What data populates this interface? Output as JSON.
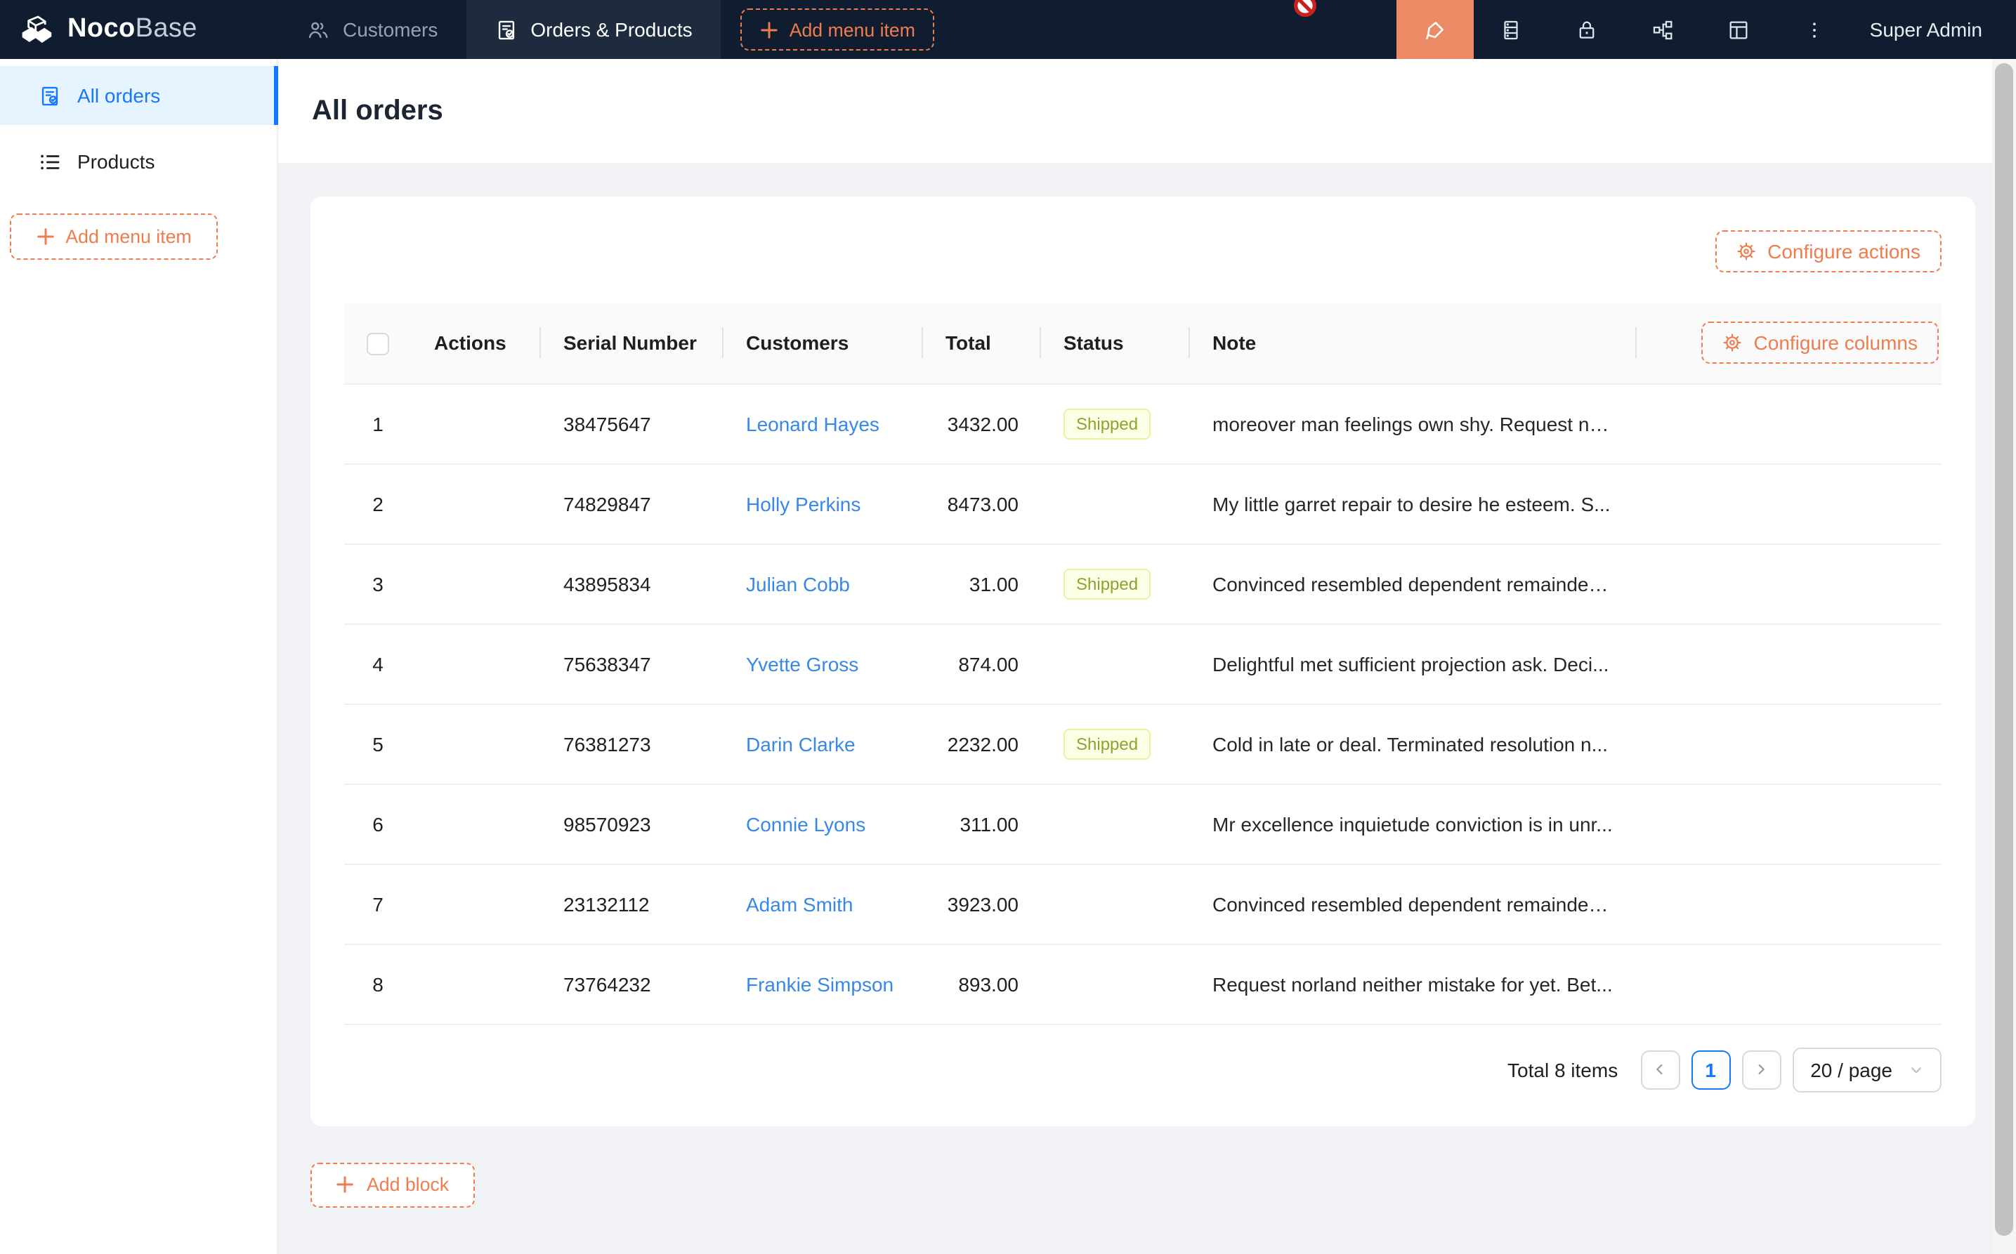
{
  "colors": {
    "nav_bg": "#101d31",
    "nav_active_bg": "#1e2b3f",
    "accent_orange": "#ed7d4f",
    "accent_orange_bg": "#eb8a64",
    "side_active_bg": "#e6f4ff",
    "active_blue": "#1677ff",
    "link_blue": "#3788e8",
    "content_bg": "#f0f2f5",
    "tag_bg": "#fcffe6",
    "tag_border": "#e8f39b",
    "tag_text": "#8ca32f",
    "cursor_red": "#c9211c"
  },
  "nav": {
    "logo_bold": "Noco",
    "logo_light": "Base",
    "tabs": [
      {
        "label": "Customers",
        "active": false
      },
      {
        "label": "Orders & Products",
        "active": true
      }
    ],
    "add_menu_item_label": "Add menu item",
    "user": "Super Admin"
  },
  "sidebar": {
    "items": [
      {
        "label": "All orders",
        "active": true
      },
      {
        "label": "Products",
        "active": false
      }
    ],
    "add_menu_item_label": "Add menu item"
  },
  "page": {
    "title": "All orders"
  },
  "card": {
    "configure_actions_label": "Configure actions",
    "configure_columns_label": "Configure columns"
  },
  "table": {
    "columns": [
      "Actions",
      "Serial Number",
      "Customers",
      "Total",
      "Status",
      "Note"
    ],
    "status_shipped_label": "Shipped",
    "rows": [
      {
        "index": "1",
        "serial": "38475647",
        "customer": "Leonard Hayes",
        "total": "3432.00",
        "status": "Shipped",
        "note": "moreover man feelings own shy. Request no..."
      },
      {
        "index": "2",
        "serial": "74829847",
        "customer": "Holly Perkins",
        "total": "8473.00",
        "status": "",
        "note": "My little garret repair to desire he esteem. S..."
      },
      {
        "index": "3",
        "serial": "43895834",
        "customer": "Julian Cobb",
        "total": "31.00",
        "status": "Shipped",
        "note": "Convinced resembled dependent remainder ..."
      },
      {
        "index": "4",
        "serial": "75638347",
        "customer": "Yvette Gross",
        "total": "874.00",
        "status": "",
        "note": "Delightful met sufficient projection ask. Deci..."
      },
      {
        "index": "5",
        "serial": "76381273",
        "customer": "Darin Clarke",
        "total": "2232.00",
        "status": "Shipped",
        "note": "Cold in late or deal. Terminated resolution n..."
      },
      {
        "index": "6",
        "serial": "98570923",
        "customer": "Connie Lyons",
        "total": "311.00",
        "status": "",
        "note": "Mr excellence inquietude conviction is in unr..."
      },
      {
        "index": "7",
        "serial": "23132112",
        "customer": "Adam Smith",
        "total": "3923.00",
        "status": "",
        "note": "Convinced resembled dependent remainder ..."
      },
      {
        "index": "8",
        "serial": "73764232",
        "customer": "Frankie Simpson",
        "total": "893.00",
        "status": "",
        "note": "Request norland neither mistake for yet. Bet..."
      }
    ]
  },
  "pagination": {
    "total_text": "Total 8 items",
    "current_page": "1",
    "page_size_label": "20 / page"
  },
  "add_block_label": "Add block"
}
